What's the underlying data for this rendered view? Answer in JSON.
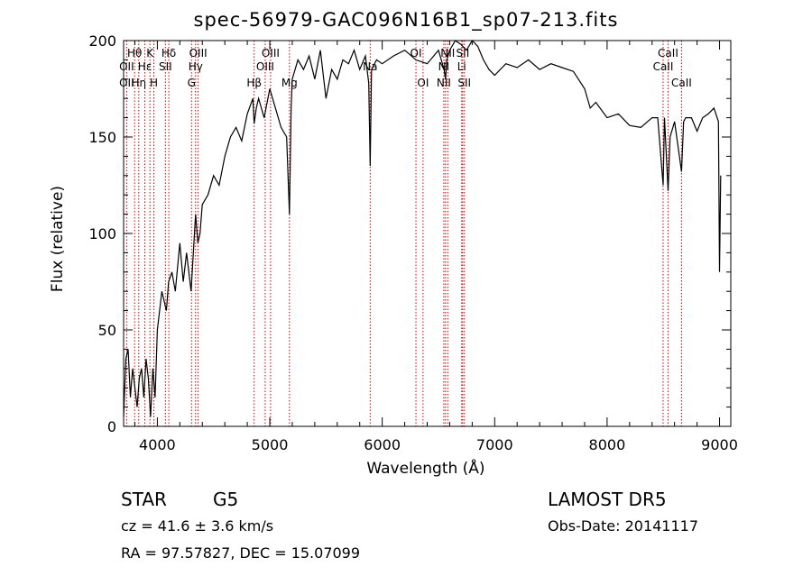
{
  "chart_data": {
    "type": "line",
    "title": "spec-56979-GAC096N16B1_sp07-213.fits",
    "xlabel": "Wavelength (Å)",
    "ylabel": "Flux (relative)",
    "xlim": [
      3700,
      9100
    ],
    "ylim": [
      0,
      200
    ],
    "x_ticks": [
      "4000",
      "5000",
      "6000",
      "7000",
      "8000",
      "9000"
    ],
    "y_ticks": [
      "0",
      "50",
      "100",
      "150",
      "200"
    ],
    "grid": false,
    "series": [
      {
        "color": "#000000",
        "x": [
          3700,
          3720,
          3740,
          3760,
          3780,
          3800,
          3820,
          3840,
          3860,
          3880,
          3900,
          3920,
          3940,
          3960,
          3980,
          4000,
          4020,
          4040,
          4060,
          4080,
          4100,
          4130,
          4160,
          4200,
          4230,
          4260,
          4300,
          4340,
          4360,
          4380,
          4400,
          4450,
          4500,
          4550,
          4600,
          4650,
          4700,
          4750,
          4800,
          4850,
          4861,
          4880,
          4900,
          4950,
          5000,
          5050,
          5100,
          5150,
          5175,
          5190,
          5200,
          5250,
          5300,
          5350,
          5400,
          5450,
          5500,
          5550,
          5600,
          5650,
          5700,
          5750,
          5800,
          5850,
          5880,
          5893,
          5905,
          5950,
          6000,
          6100,
          6200,
          6300,
          6400,
          6500,
          6550,
          6563,
          6575,
          6600,
          6650,
          6700,
          6750,
          6800,
          6850,
          6900,
          6950,
          7000,
          7100,
          7200,
          7300,
          7400,
          7500,
          7600,
          7700,
          7800,
          7850,
          7900,
          8000,
          8100,
          8200,
          8300,
          8400,
          8450,
          8498,
          8510,
          8542,
          8560,
          8600,
          8662,
          8680,
          8700,
          8750,
          8800,
          8850,
          8900,
          8950,
          8990,
          9000,
          9010
        ],
        "y": [
          5,
          35,
          40,
          15,
          30,
          20,
          10,
          25,
          30,
          15,
          35,
          25,
          5,
          30,
          15,
          50,
          60,
          70,
          65,
          60,
          75,
          80,
          70,
          95,
          75,
          90,
          70,
          110,
          95,
          100,
          115,
          120,
          130,
          125,
          140,
          150,
          155,
          148,
          162,
          170,
          157,
          165,
          170,
          160,
          175,
          165,
          155,
          150,
          110,
          165,
          180,
          190,
          185,
          192,
          180,
          195,
          170,
          185,
          180,
          190,
          188,
          195,
          185,
          192,
          178,
          135,
          185,
          190,
          188,
          192,
          195,
          190,
          188,
          195,
          185,
          180,
          190,
          195,
          200,
          198,
          195,
          200,
          197,
          190,
          185,
          182,
          188,
          186,
          190,
          185,
          188,
          186,
          184,
          175,
          165,
          168,
          160,
          162,
          156,
          155,
          160,
          160,
          125,
          160,
          122,
          150,
          158,
          132,
          158,
          160,
          160,
          153,
          160,
          162,
          165,
          158,
          80,
          130
        ]
      }
    ],
    "line_labels": [
      {
        "label": "Hθ",
        "row": 0,
        "x": 3798
      },
      {
        "label": "OII",
        "row": 1,
        "x": 3727
      },
      {
        "label": "OII",
        "row": 2,
        "x": 3727
      },
      {
        "label": "K",
        "row": 0,
        "x": 3934
      },
      {
        "label": "Hε",
        "row": 1,
        "x": 3889
      },
      {
        "label": "Hη",
        "row": 2,
        "x": 3835
      },
      {
        "label": "Hδ",
        "row": 0,
        "x": 4102
      },
      {
        "label": "SII",
        "row": 1,
        "x": 4072
      },
      {
        "label": "H",
        "row": 2,
        "x": 3969
      },
      {
        "label": "OIII",
        "row": 0,
        "x": 4363
      },
      {
        "label": "Hγ",
        "row": 1,
        "x": 4340
      },
      {
        "label": "G",
        "row": 2,
        "x": 4304
      },
      {
        "label": "OIII",
        "row": 0,
        "x": 5007
      },
      {
        "label": "OIII",
        "row": 1,
        "x": 4959
      },
      {
        "label": "Hβ",
        "row": 2,
        "x": 4861
      },
      {
        "label": "Mg",
        "row": 2,
        "x": 5175
      },
      {
        "label": "Na",
        "row": 1,
        "x": 5893
      },
      {
        "label": "OI",
        "row": 0,
        "x": 6300
      },
      {
        "label": "OI",
        "row": 2,
        "x": 6363
      },
      {
        "label": "NII",
        "row": 0,
        "x": 6583
      },
      {
        "label": "SII",
        "row": 0,
        "x": 6716
      },
      {
        "label": "NI",
        "row": 1,
        "x": 6548
      },
      {
        "label": "Li",
        "row": 1,
        "x": 6707
      },
      {
        "label": "NII",
        "row": 2,
        "x": 6548
      },
      {
        "label": "SII",
        "row": 2,
        "x": 6731
      },
      {
        "label": "CaII",
        "row": 0,
        "x": 8542
      },
      {
        "label": "CaII",
        "row": 1,
        "x": 8498
      },
      {
        "label": "CaII",
        "row": 2,
        "x": 8662
      }
    ],
    "line_markers_x": [
      3727,
      3798,
      3835,
      3889,
      3934,
      3969,
      4072,
      4102,
      4304,
      4340,
      4363,
      4861,
      4959,
      5007,
      5175,
      5893,
      6300,
      6363,
      6548,
      6563,
      6583,
      6707,
      6716,
      6731,
      8498,
      8542,
      8662
    ],
    "marker_color": "#cc0000"
  },
  "info": {
    "class": "STAR",
    "subclass": "G5",
    "survey": "LAMOST  DR5",
    "cz": "cz = 41.6 ± 3.6 km/s",
    "obs_date": "Obs-Date: 20141117",
    "coords": "RA =  97.57827, DEC =  15.07099"
  }
}
